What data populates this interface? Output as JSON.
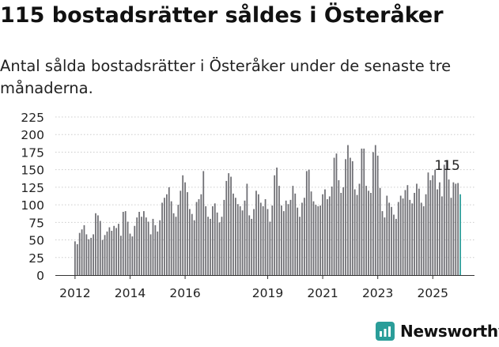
{
  "header": {
    "title": "115 bostadsrätter såldes i Österåker",
    "subtitle": "Antal sålda bostadsrätter i Österåker under de senaste tre månaderna."
  },
  "brand": {
    "name": "Newsworthy",
    "icon": "newsworthy-logo-icon",
    "color": "#2a9d99"
  },
  "chart_data": {
    "type": "bar",
    "title": "",
    "xlabel": "",
    "ylabel": "",
    "ylim": [
      0,
      225
    ],
    "yticks": [
      0,
      25,
      50,
      75,
      100,
      125,
      150,
      175,
      200,
      225
    ],
    "xticks": [
      {
        "label": "2012",
        "index": 0
      },
      {
        "label": "2014",
        "index": 24
      },
      {
        "label": "2016",
        "index": 48
      },
      {
        "label": "2019",
        "index": 84
      },
      {
        "label": "2021",
        "index": 108
      },
      {
        "label": "2023",
        "index": 132
      },
      {
        "label": "2025",
        "index": 156
      }
    ],
    "annotation": {
      "text": "115",
      "index": 163
    },
    "grid": "horizontal",
    "colors": {
      "bar": "#6e6e73",
      "highlight": "#2a9d99",
      "grid": "#cccccc",
      "axis": "#333333"
    },
    "values": [
      48,
      44,
      60,
      65,
      71,
      58,
      51,
      53,
      58,
      88,
      85,
      77,
      50,
      57,
      62,
      68,
      63,
      70,
      67,
      73,
      56,
      90,
      91,
      76,
      59,
      55,
      70,
      82,
      90,
      83,
      91,
      82,
      76,
      58,
      80,
      71,
      62,
      78,
      103,
      110,
      115,
      125,
      105,
      88,
      83,
      100,
      120,
      142,
      132,
      118,
      94,
      87,
      78,
      104,
      108,
      115,
      148,
      98,
      83,
      80,
      98,
      102,
      89,
      75,
      83,
      107,
      134,
      145,
      140,
      116,
      110,
      101,
      98,
      92,
      106,
      130,
      85,
      80,
      94,
      120,
      115,
      103,
      98,
      108,
      94,
      76,
      99,
      142,
      153,
      127,
      99,
      91,
      106,
      101,
      107,
      127,
      116,
      96,
      83,
      103,
      110,
      148,
      150,
      119,
      105,
      100,
      98,
      99,
      115,
      122,
      108,
      112,
      126,
      167,
      173,
      135,
      117,
      125,
      165,
      185,
      167,
      162,
      122,
      114,
      130,
      180,
      180,
      127,
      120,
      117,
      175,
      185,
      170,
      124,
      91,
      82,
      113,
      103,
      97,
      86,
      80,
      104,
      113,
      109,
      121,
      128,
      107,
      102,
      117,
      130,
      123,
      103,
      98,
      115,
      146,
      135,
      142,
      150,
      122,
      132,
      112,
      157,
      163,
      136,
      110,
      132,
      130,
      131,
      115
    ]
  }
}
